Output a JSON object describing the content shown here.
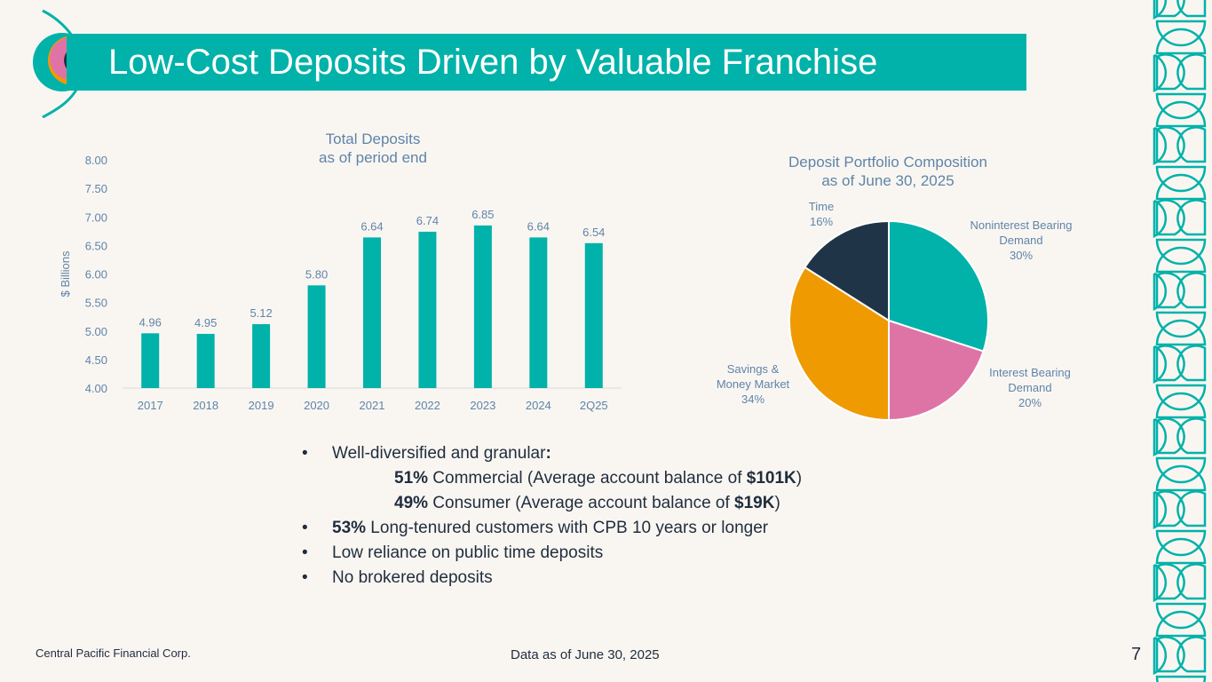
{
  "header": {
    "title": "Low-Cost Deposits Driven by Valuable Franchise"
  },
  "colors": {
    "teal": "#00b2a9",
    "pink": "#de74a6",
    "orange": "#ef9a00",
    "navy": "#1f3547",
    "label_blue": "#5f84a8"
  },
  "chart_data": [
    {
      "type": "bar",
      "title": "Total Deposits",
      "subtitle": "as of period end",
      "ylabel": "$ Billions",
      "xlabel": "",
      "categories": [
        "2017",
        "2018",
        "2019",
        "2020",
        "2021",
        "2022",
        "2023",
        "2024",
        "2Q25"
      ],
      "values": [
        4.96,
        4.95,
        5.12,
        5.8,
        6.64,
        6.74,
        6.85,
        6.64,
        6.54
      ],
      "value_labels": [
        "4.96",
        "4.95",
        "5.12",
        "5.80",
        "6.64",
        "6.74",
        "6.85",
        "6.64",
        "6.54"
      ],
      "ylim": [
        4.0,
        8.0
      ],
      "yticks": [
        "4.00",
        "4.50",
        "5.00",
        "5.50",
        "6.00",
        "6.50",
        "7.00",
        "7.50",
        "8.00"
      ],
      "grid": false,
      "color": "#00b2a9"
    },
    {
      "type": "pie",
      "title": "Deposit Portfolio Composition",
      "subtitle": "as of June 30, 2025",
      "slices": [
        {
          "label": "Noninterest Bearing Demand",
          "label_lines": [
            "Noninterest Bearing",
            "Demand"
          ],
          "value": 30,
          "value_label": "30%",
          "color": "#00b2a9"
        },
        {
          "label": "Interest Bearing Demand",
          "label_lines": [
            "Interest Bearing",
            "Demand"
          ],
          "value": 20,
          "value_label": "20%",
          "color": "#de74a6"
        },
        {
          "label": "Savings & Money Market",
          "label_lines": [
            "Savings &",
            "Money Market"
          ],
          "value": 34,
          "value_label": "34%",
          "color": "#ef9a00"
        },
        {
          "label": "Time",
          "label_lines": [
            "Time"
          ],
          "value": 16,
          "value_label": "16%",
          "color": "#1f3547"
        }
      ]
    }
  ],
  "bullets": {
    "b1": "Well-diversified and granular",
    "b1_colon": ":",
    "s1_pct": "51%",
    "s1_text": " Commercial (Average account balance of ",
    "s1_amt": "$101K",
    "s1_end": ")",
    "s2_pct": "49%",
    "s2_text": " Consumer (Average account balance of ",
    "s2_amt": "$19K",
    "s2_end": ")",
    "b2_pct": "53%",
    "b2_text": " Long-tenured customers with CPB 10 years or longer",
    "b3": "Low reliance on public time deposits",
    "b4": "No brokered deposits",
    "bullet_char": "•"
  },
  "footer": {
    "company": "Central Pacific Financial Corp.",
    "data_note": "Data as of June 30, 2025",
    "page_number": "7"
  }
}
